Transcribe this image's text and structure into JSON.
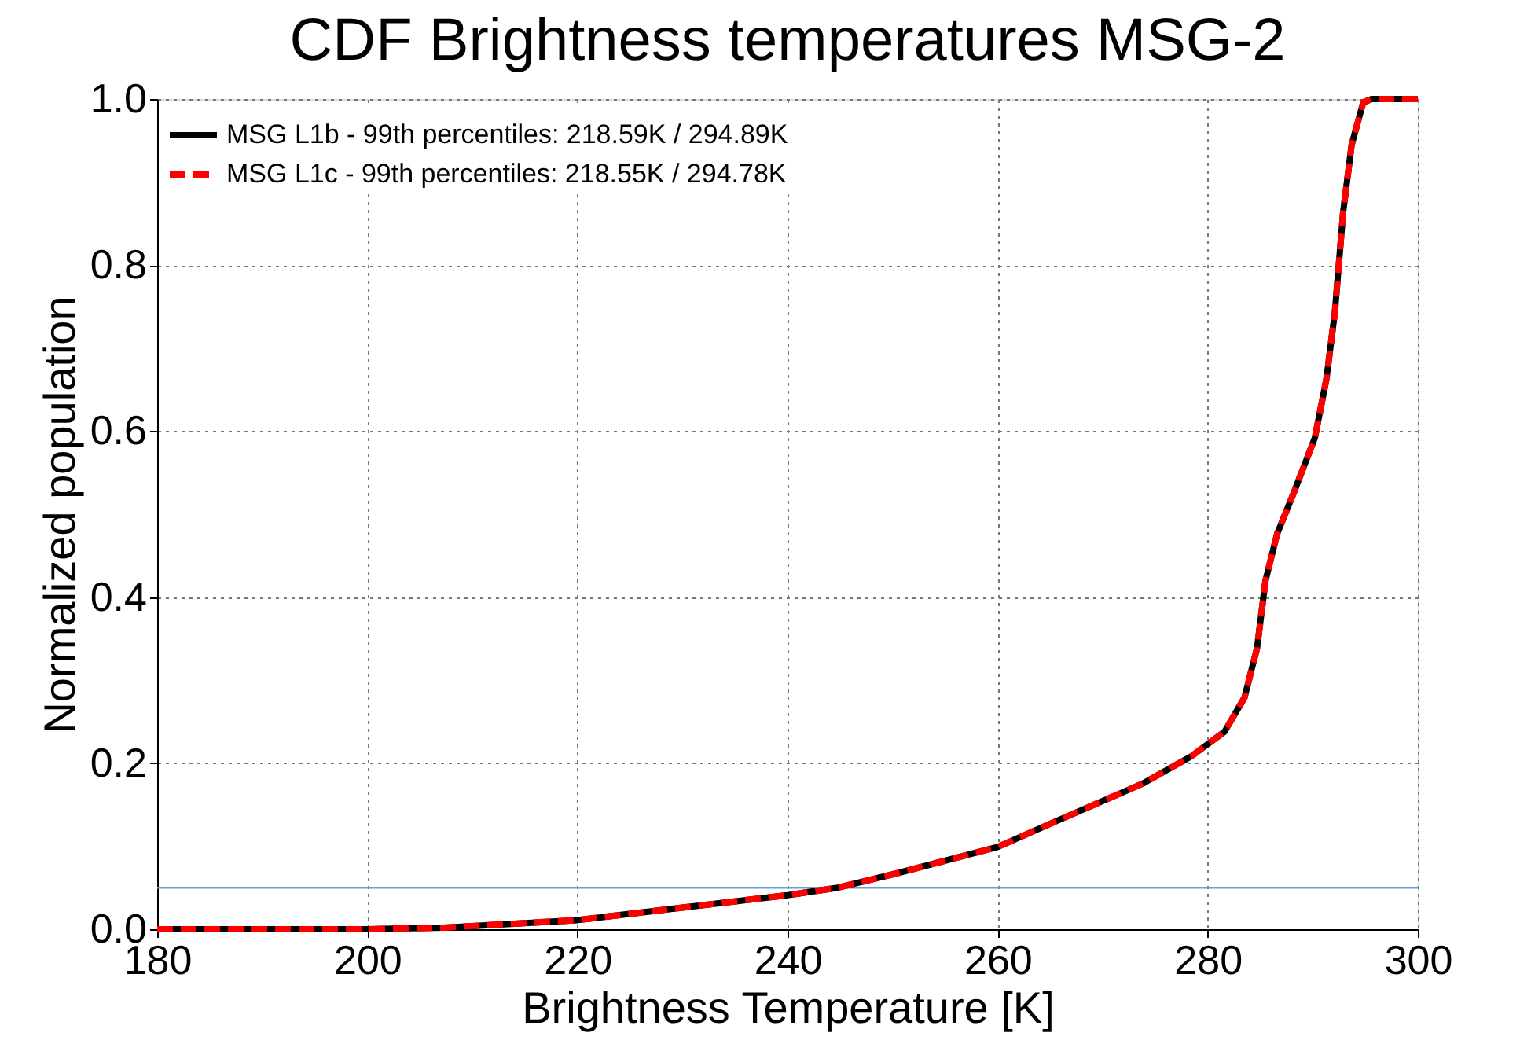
{
  "chart_data": {
    "type": "line",
    "title": "CDF Brightness temperatures MSG-2",
    "xlabel": "Brightness Temperature [K]",
    "ylabel": "Normalized population",
    "xlim": [
      180,
      300
    ],
    "xticks": [
      180,
      200,
      220,
      240,
      260,
      280,
      300
    ],
    "ylim": [
      0,
      1.0
    ],
    "yticks": [
      {
        "value": 0,
        "label": "0.0"
      },
      0.2,
      0.4,
      0.6,
      0.8,
      {
        "value": 1.0,
        "label": "1.0"
      }
    ],
    "x": [
      180,
      200,
      207.3,
      220,
      230,
      240,
      244.8,
      250.3,
      260,
      265.9,
      273.75,
      278.4,
      281.6,
      283.5,
      284.7,
      285.5,
      286.6,
      288.2,
      290.2,
      291.3,
      292.1,
      292.9,
      293.7,
      294.8,
      295.6,
      300
    ],
    "series": [
      {
        "name": "MSG L1b - 99th percentiles: 218.59K / 294.89K",
        "color": "#000000",
        "line_style": "solid",
        "values": [
          0,
          0,
          0.002,
          0.011,
          0.026,
          0.041,
          0.05,
          0.067,
          0.099,
          0.132,
          0.175,
          0.208,
          0.238,
          0.279,
          0.339,
          0.42,
          0.476,
          0.526,
          0.592,
          0.663,
          0.743,
          0.865,
          0.945,
          0.996,
          1.0,
          1.0
        ]
      },
      {
        "name": "MSG L1c - 99th percentiles: 218.55K / 294.78K",
        "color": "#ff0000",
        "line_style": "dashed",
        "values": [
          0,
          0,
          0.002,
          0.011,
          0.026,
          0.041,
          0.05,
          0.067,
          0.099,
          0.132,
          0.175,
          0.208,
          0.238,
          0.279,
          0.339,
          0.42,
          0.476,
          0.526,
          0.592,
          0.663,
          0.743,
          0.865,
          0.945,
          0.996,
          1.0,
          1.0
        ]
      }
    ],
    "ref_lines": [
      {
        "axis": "y",
        "value": 0.05,
        "color": "#6a9bd1"
      }
    ],
    "grid": true,
    "legend": "top left",
    "marker": "none"
  }
}
